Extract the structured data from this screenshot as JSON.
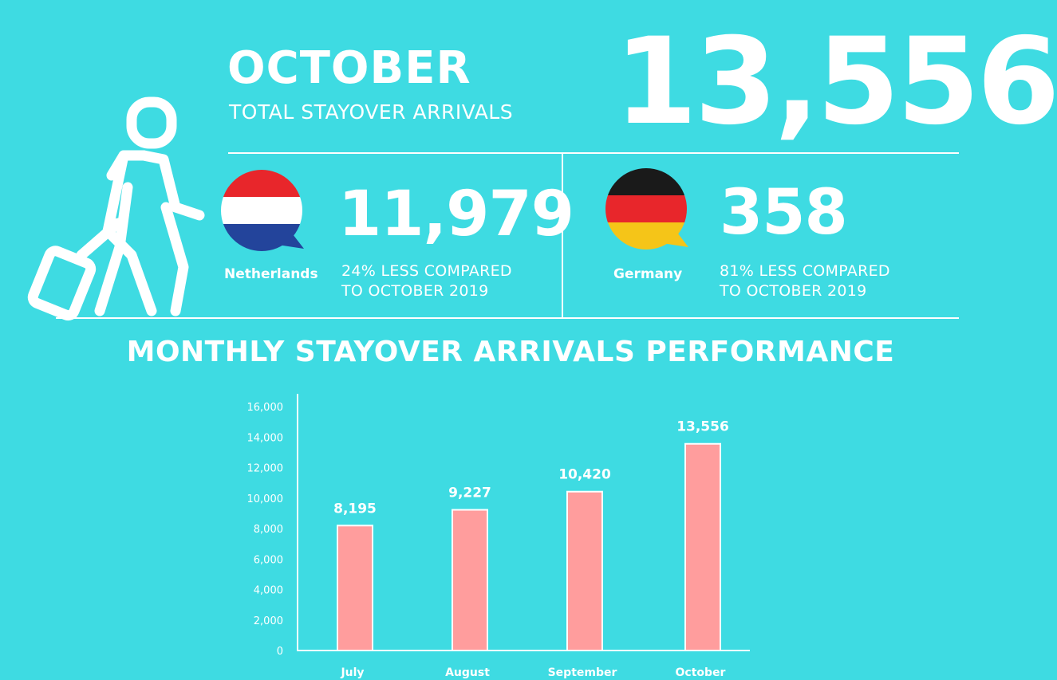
{
  "header": {
    "month": "OCTOBER",
    "subtitle": "TOTAL STAYOVER ARRIVALS",
    "total": "13,556"
  },
  "countries": [
    {
      "name": "Netherlands",
      "arrivals": "11,979",
      "compare_line1": "24% LESS COMPARED",
      "compare_line2": "TO OCTOBER 2019",
      "flag_colors": [
        "#e8262b",
        "#ffffff",
        "#23449b"
      ]
    },
    {
      "name": "Germany",
      "arrivals": "358",
      "compare_line1": "81% LESS COMPARED",
      "compare_line2": "TO OCTOBER 2019",
      "flag_colors": [
        "#1a1a1a",
        "#e8262b",
        "#f5c518"
      ]
    }
  ],
  "icons": {
    "traveler": "traveler-with-suitcase-icon"
  },
  "section_title": "MONTHLY STAYOVER ARRIVALS PERFORMANCE",
  "colors": {
    "background": "#3edbe2",
    "text": "#ffffff",
    "bar": "#ff9d9d"
  },
  "chart_data": {
    "type": "bar",
    "categories": [
      "July",
      "August",
      "September",
      "October"
    ],
    "values": [
      8195,
      9227,
      10420,
      13556
    ],
    "value_labels": [
      "8,195",
      "9,227",
      "10,420",
      "13,556"
    ],
    "yticks": [
      0,
      2000,
      4000,
      6000,
      8000,
      10000,
      12000,
      14000,
      16000
    ],
    "ytick_labels": [
      "0",
      "2,000",
      "4,000",
      "6,000",
      "8,000",
      "10,000",
      "12,000",
      "14,000",
      "16,000"
    ],
    "ylim": [
      0,
      16000
    ],
    "title": "",
    "xlabel": "",
    "ylabel": "",
    "grid": false
  }
}
